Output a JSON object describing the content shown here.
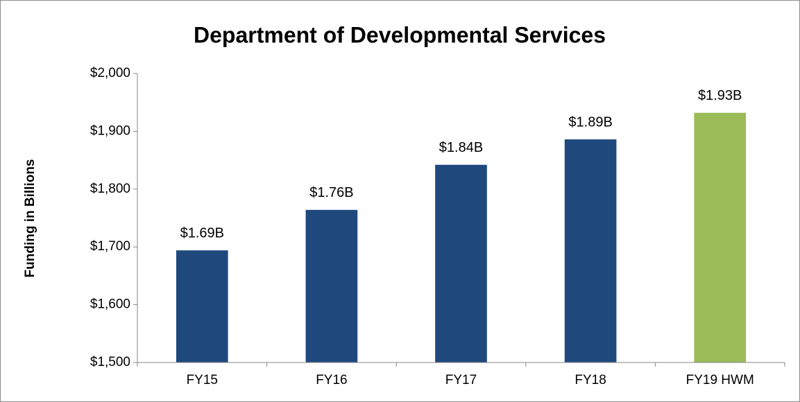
{
  "chart_data": {
    "type": "bar",
    "title": "Department of Developmental Services",
    "y_label": "Funding in Billions",
    "categories": [
      "FY15",
      "FY16",
      "FY17",
      "FY18",
      "FY19 HWM"
    ],
    "values": [
      1694,
      1764,
      1842,
      1886,
      1932
    ],
    "value_labels": [
      "$1.69B",
      "$1.76B",
      "$1.84B",
      "$1.89B",
      "$1.93B"
    ],
    "colors": [
      "#1f497d",
      "#1f497d",
      "#1f497d",
      "#1f497d",
      "#9bbb59"
    ],
    "ylim": [
      1500,
      2000
    ],
    "yticks": [
      {
        "value": 1500,
        "label": "$1,500"
      },
      {
        "value": 1600,
        "label": "$1,600"
      },
      {
        "value": 1700,
        "label": "$1,700"
      },
      {
        "value": 1800,
        "label": "$1,800"
      },
      {
        "value": 1900,
        "label": "$1,900"
      },
      {
        "value": 2000,
        "label": "$2,000"
      }
    ],
    "grid": false
  }
}
